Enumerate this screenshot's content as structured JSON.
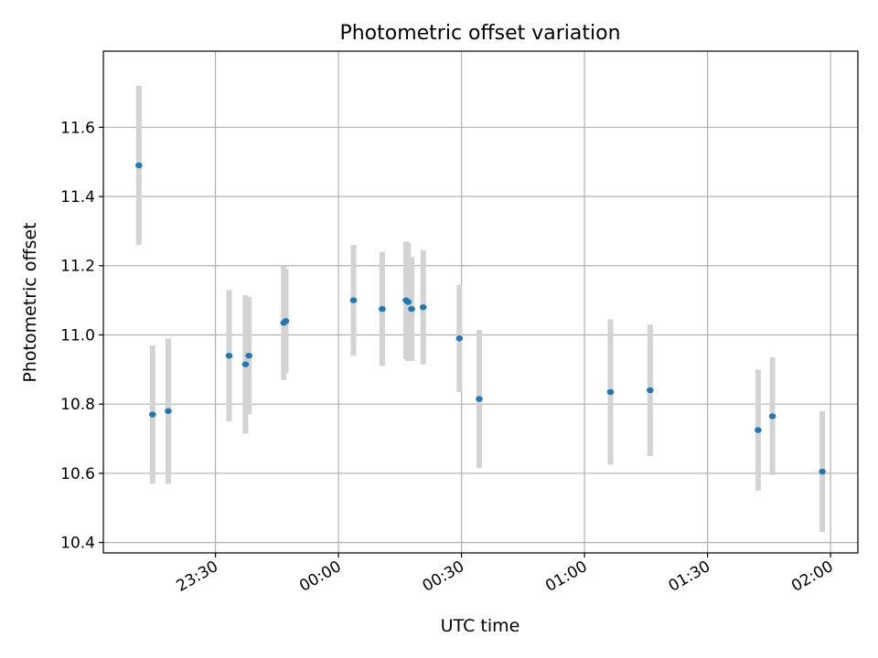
{
  "chart_data": {
    "type": "scatter",
    "title": "Photometric offset variation",
    "xlabel": "UTC time",
    "ylabel": "Photometric offset",
    "x_tick_labels": [
      "23:30",
      "00:00",
      "00:30",
      "01:00",
      "01:30",
      "02:00"
    ],
    "y_tick_labels": [
      "10.4",
      "10.6",
      "10.8",
      "11.0",
      "11.2",
      "11.4",
      "11.6"
    ],
    "xlim": [
      "23:02:40",
      "02:06:40"
    ],
    "ylim": [
      10.37,
      11.82
    ],
    "grid": true,
    "marker_color": "#1f77b4",
    "errorbar_color": "#d3d3d3",
    "points": [
      {
        "time": "23:11:20",
        "value": 11.49,
        "error": 0.23
      },
      {
        "time": "23:14:40",
        "value": 10.77,
        "error": 0.2
      },
      {
        "time": "23:18:30",
        "value": 10.78,
        "error": 0.21
      },
      {
        "time": "23:33:20",
        "value": 10.94,
        "error": 0.19
      },
      {
        "time": "23:37:20",
        "value": 10.915,
        "error": 0.2
      },
      {
        "time": "23:38:10",
        "value": 10.94,
        "error": 0.17
      },
      {
        "time": "23:46:40",
        "value": 11.035,
        "error": 0.165
      },
      {
        "time": "23:47:10",
        "value": 11.04,
        "error": 0.15
      },
      {
        "time": "00:03:40",
        "value": 11.1,
        "error": 0.16
      },
      {
        "time": "00:10:40",
        "value": 11.075,
        "error": 0.165
      },
      {
        "time": "00:16:30",
        "value": 11.1,
        "error": 0.17
      },
      {
        "time": "00:17:00",
        "value": 11.095,
        "error": 0.17
      },
      {
        "time": "00:17:50",
        "value": 11.075,
        "error": 0.15
      },
      {
        "time": "00:20:40",
        "value": 11.08,
        "error": 0.165
      },
      {
        "time": "00:29:30",
        "value": 10.99,
        "error": 0.155
      },
      {
        "time": "00:34:20",
        "value": 10.815,
        "error": 0.2
      },
      {
        "time": "01:06:20",
        "value": 10.835,
        "error": 0.21
      },
      {
        "time": "01:16:00",
        "value": 10.84,
        "error": 0.19
      },
      {
        "time": "01:42:20",
        "value": 10.725,
        "error": 0.175
      },
      {
        "time": "01:45:50",
        "value": 10.765,
        "error": 0.17
      },
      {
        "time": "01:58:00",
        "value": 10.605,
        "error": 0.175
      }
    ]
  }
}
